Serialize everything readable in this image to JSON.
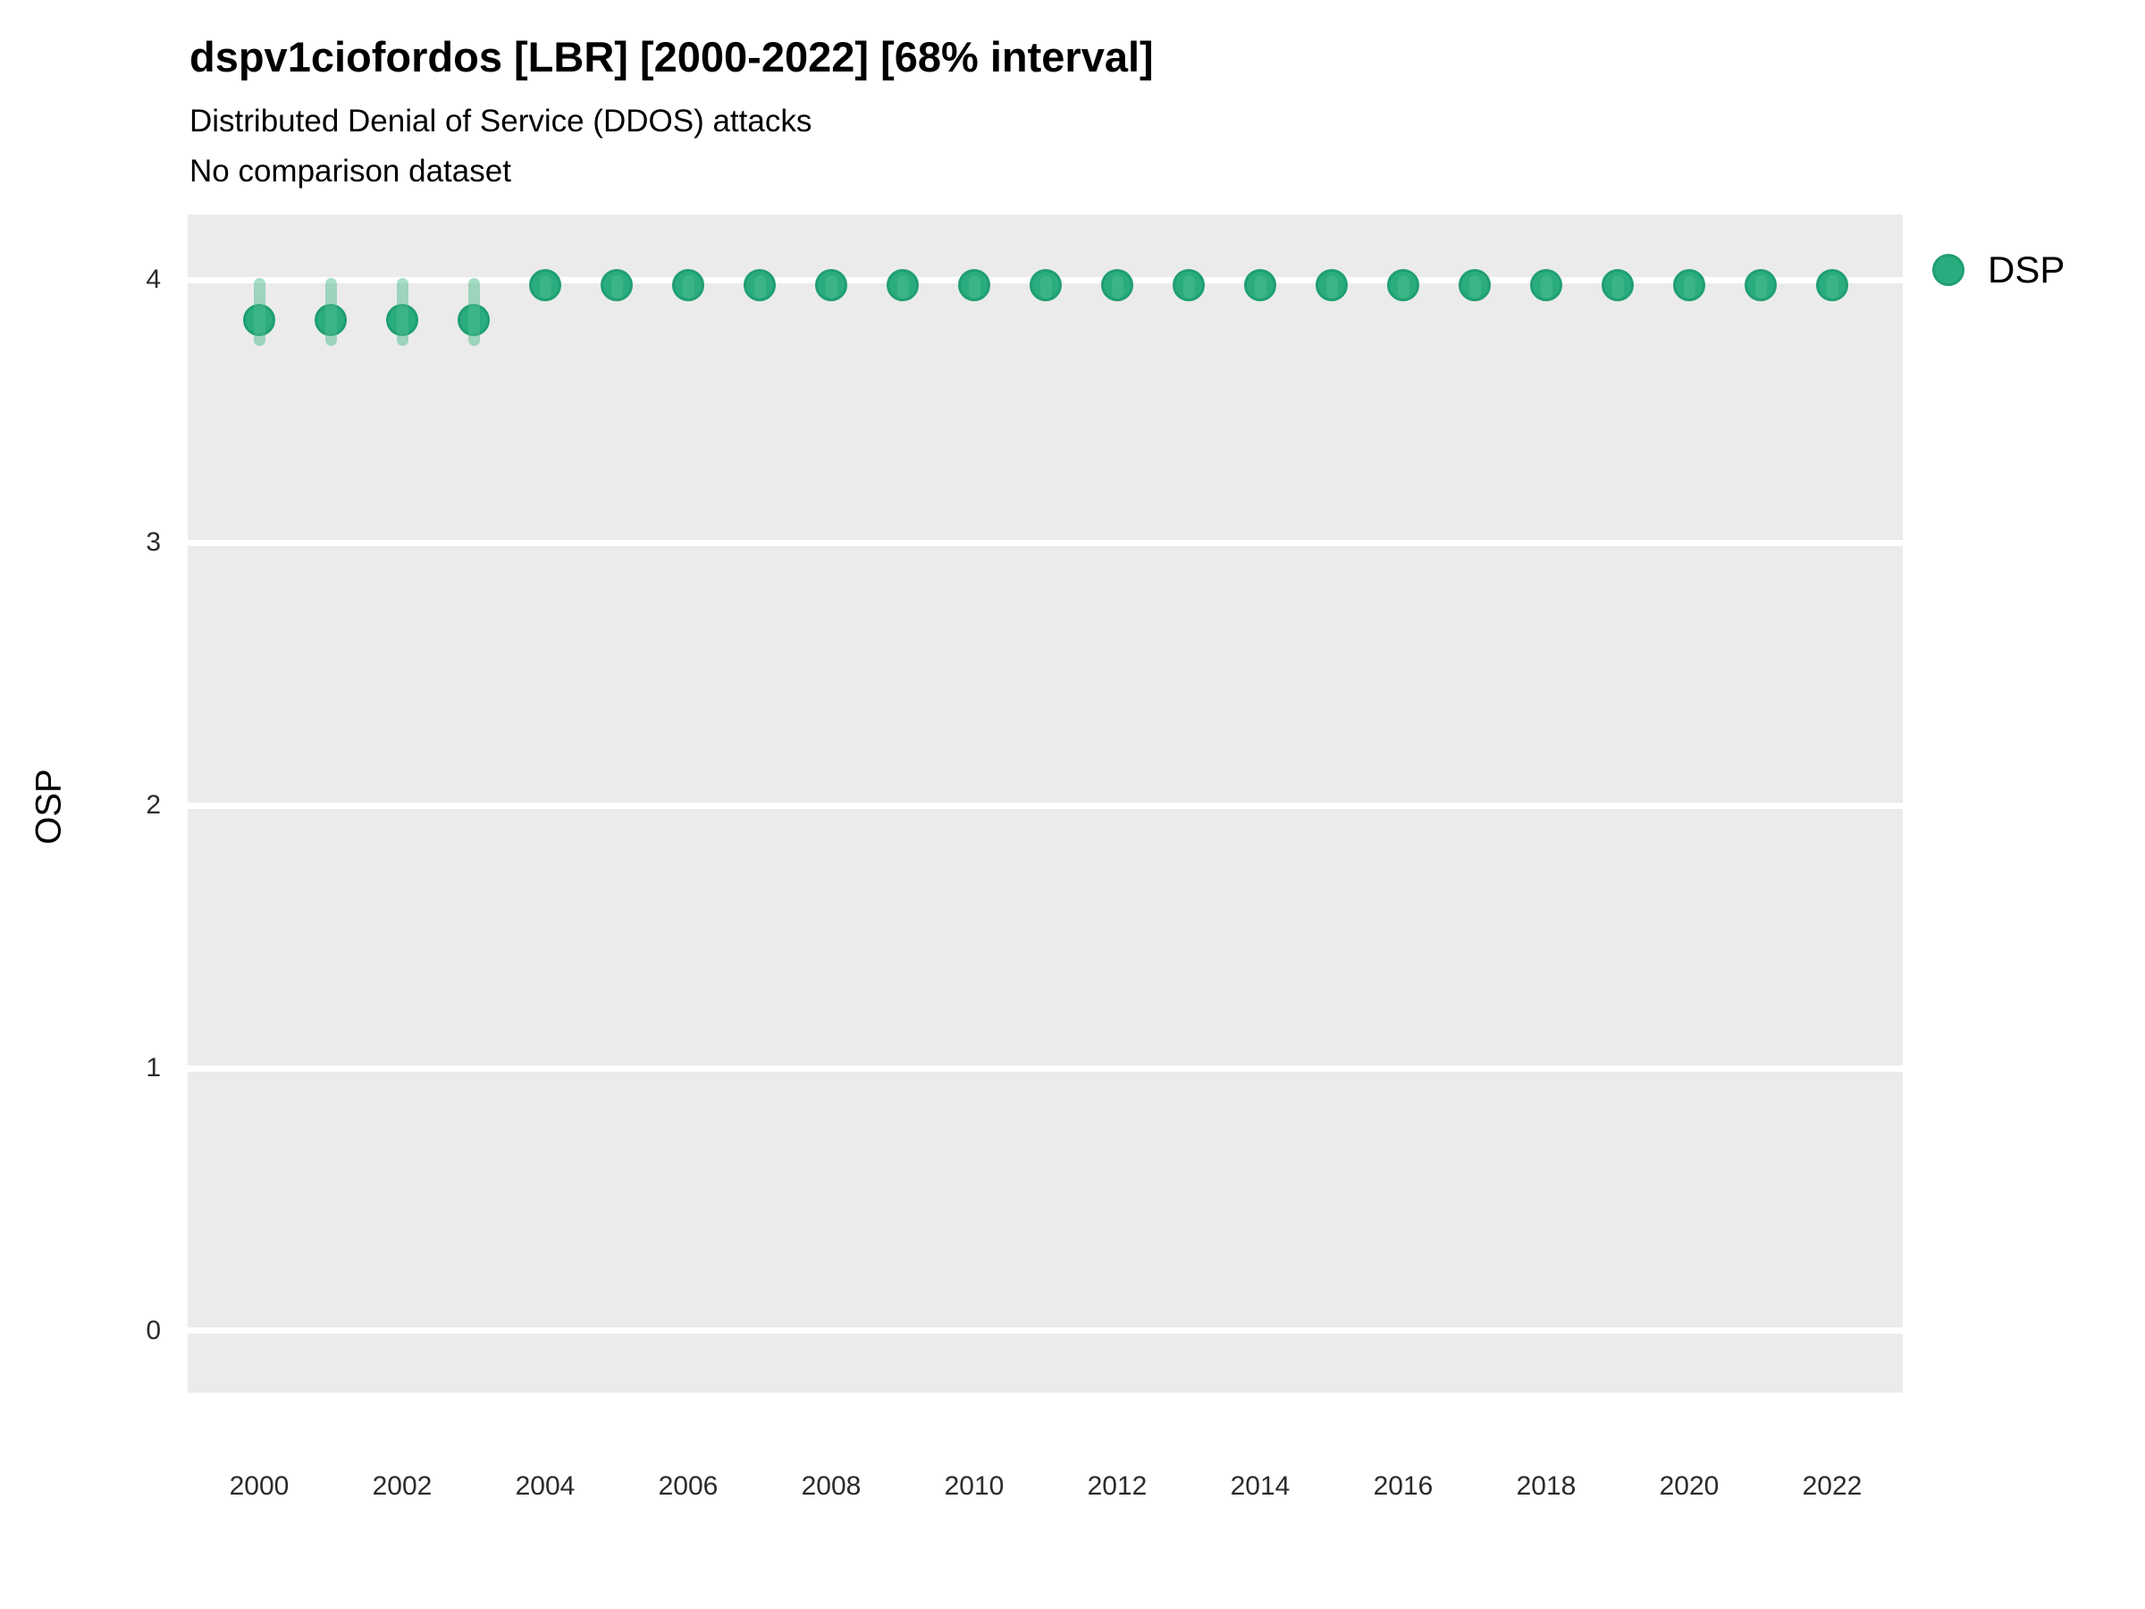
{
  "chart_data": {
    "type": "scatter",
    "title": "dspv1ciofordos [LBR] [2000-2022] [68% interval]",
    "subtitle": "Distributed Denial of Service (DDOS) attacks",
    "note": "No comparison dataset",
    "xlabel": "",
    "ylabel": "OSP",
    "x": [
      2000,
      2001,
      2002,
      2003,
      2004,
      2005,
      2006,
      2007,
      2008,
      2009,
      2010,
      2011,
      2012,
      2013,
      2014,
      2015,
      2016,
      2017,
      2018,
      2019,
      2020,
      2021,
      2022
    ],
    "series": [
      {
        "name": "DSP",
        "values": [
          3.85,
          3.85,
          3.85,
          3.85,
          3.98,
          3.98,
          3.98,
          3.98,
          3.98,
          3.98,
          3.98,
          3.98,
          3.98,
          3.98,
          3.98,
          3.98,
          3.98,
          3.98,
          3.98,
          3.98,
          3.98,
          3.98,
          3.98
        ],
        "interval_low": [
          3.75,
          3.75,
          3.75,
          3.75,
          3.93,
          3.93,
          3.93,
          3.93,
          3.93,
          3.93,
          3.93,
          3.93,
          3.93,
          3.93,
          3.93,
          3.93,
          3.93,
          3.93,
          3.93,
          3.93,
          3.93,
          3.93,
          3.93
        ],
        "interval_high": [
          4.01,
          4.01,
          4.01,
          4.01,
          4.02,
          4.02,
          4.02,
          4.02,
          4.02,
          4.02,
          4.02,
          4.02,
          4.02,
          4.02,
          4.02,
          4.02,
          4.02,
          4.02,
          4.02,
          4.02,
          4.02,
          4.02,
          4.02
        ],
        "interval_level": "68%"
      }
    ],
    "ylim": [
      -0.235,
      4.25
    ],
    "xlim": [
      1999,
      2023
    ],
    "y_ticks": [
      4,
      3,
      2,
      1,
      0
    ],
    "x_ticks": [
      2000,
      2002,
      2004,
      2006,
      2008,
      2010,
      2012,
      2014,
      2016,
      2018,
      2020,
      2022
    ],
    "grid": "major-horizontal-only",
    "legend_position": "right",
    "colors": {
      "point_fill": "#2bac7e",
      "point_border": "#1f9f71",
      "interval": "rgba(77, 189, 142, 0.5)",
      "panel_bg": "#ebebeb",
      "gridline": "#ffffff"
    }
  }
}
